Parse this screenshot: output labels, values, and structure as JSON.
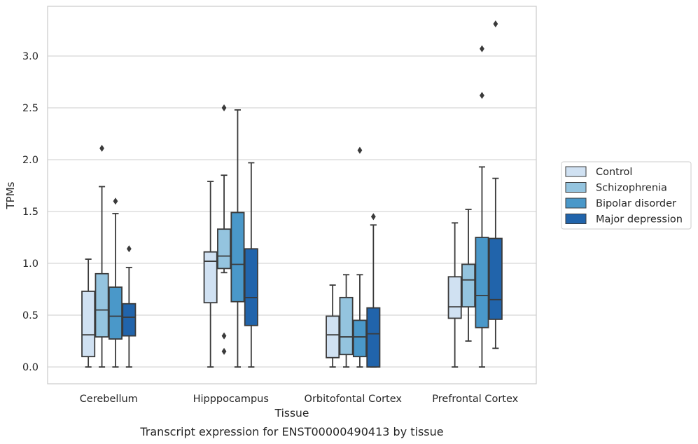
{
  "chart_data": {
    "type": "box",
    "xlabel": "Tissue",
    "ylabel": "TPMs",
    "caption": "Transcript expression for ENST00000490413 by tissue",
    "ylim": [
      -0.16,
      3.48
    ],
    "yticks": [
      {
        "value": 0.0,
        "label": "0.0"
      },
      {
        "value": 0.5,
        "label": "0.5"
      },
      {
        "value": 1.0,
        "label": "1.0"
      },
      {
        "value": 1.5,
        "label": "1.5"
      },
      {
        "value": 2.0,
        "label": "2.0"
      },
      {
        "value": 2.5,
        "label": "2.5"
      },
      {
        "value": 3.0,
        "label": "3.0"
      }
    ],
    "grid": "horizontal",
    "legend_position": "outside-right",
    "categories": [
      "Cerebellum",
      "Hipppocampus",
      "Orbitofontal Cortex",
      "Prefrontal Cortex"
    ],
    "series": [
      {
        "name": "Control",
        "color": "#d0e1f2",
        "boxes": [
          {
            "whislo": 0.0,
            "q1": 0.1,
            "med": 0.31,
            "q3": 0.73,
            "whishi": 1.04,
            "fliers": []
          },
          {
            "whislo": 0.0,
            "q1": 0.62,
            "med": 1.02,
            "q3": 1.11,
            "whishi": 1.79,
            "fliers": []
          },
          {
            "whislo": 0.0,
            "q1": 0.09,
            "med": 0.31,
            "q3": 0.49,
            "whishi": 0.79,
            "fliers": []
          },
          {
            "whislo": 0.0,
            "q1": 0.47,
            "med": 0.58,
            "q3": 0.87,
            "whishi": 1.39,
            "fliers": []
          }
        ]
      },
      {
        "name": "Schizophrenia",
        "color": "#94c4df",
        "boxes": [
          {
            "whislo": 0.0,
            "q1": 0.29,
            "med": 0.55,
            "q3": 0.9,
            "whishi": 1.74,
            "fliers": [
              2.11
            ]
          },
          {
            "whislo": 0.91,
            "q1": 0.95,
            "med": 1.07,
            "q3": 1.33,
            "whishi": 1.85,
            "fliers": [
              2.5,
              0.3,
              0.15
            ]
          },
          {
            "whislo": 0.0,
            "q1": 0.12,
            "med": 0.29,
            "q3": 0.67,
            "whishi": 0.89,
            "fliers": []
          },
          {
            "whislo": 0.25,
            "q1": 0.58,
            "med": 0.84,
            "q3": 0.99,
            "whishi": 1.52,
            "fliers": []
          }
        ]
      },
      {
        "name": "Bipolar disorder",
        "color": "#4a98c9",
        "boxes": [
          {
            "whislo": 0.0,
            "q1": 0.27,
            "med": 0.49,
            "q3": 0.77,
            "whishi": 1.48,
            "fliers": [
              1.6
            ]
          },
          {
            "whislo": 0.0,
            "q1": 0.63,
            "med": 0.99,
            "q3": 1.49,
            "whishi": 2.48,
            "fliers": []
          },
          {
            "whislo": 0.0,
            "q1": 0.1,
            "med": 0.29,
            "q3": 0.45,
            "whishi": 0.89,
            "fliers": [
              2.09
            ]
          },
          {
            "whislo": 0.0,
            "q1": 0.38,
            "med": 0.69,
            "q3": 1.25,
            "whishi": 1.93,
            "fliers": [
              2.62,
              3.07
            ]
          }
        ]
      },
      {
        "name": "Major depression",
        "color": "#2164ab",
        "boxes": [
          {
            "whislo": 0.0,
            "q1": 0.3,
            "med": 0.48,
            "q3": 0.61,
            "whishi": 0.96,
            "fliers": [
              1.14
            ]
          },
          {
            "whislo": 0.0,
            "q1": 0.4,
            "med": 0.67,
            "q3": 1.14,
            "whishi": 1.97,
            "fliers": []
          },
          {
            "whislo": 0.0,
            "q1": 0.0,
            "med": 0.32,
            "q3": 0.57,
            "whishi": 1.37,
            "fliers": [
              1.45
            ]
          },
          {
            "whislo": 0.18,
            "q1": 0.46,
            "med": 0.65,
            "q3": 1.24,
            "whishi": 1.82,
            "fliers": [
              3.31
            ]
          }
        ]
      }
    ]
  }
}
